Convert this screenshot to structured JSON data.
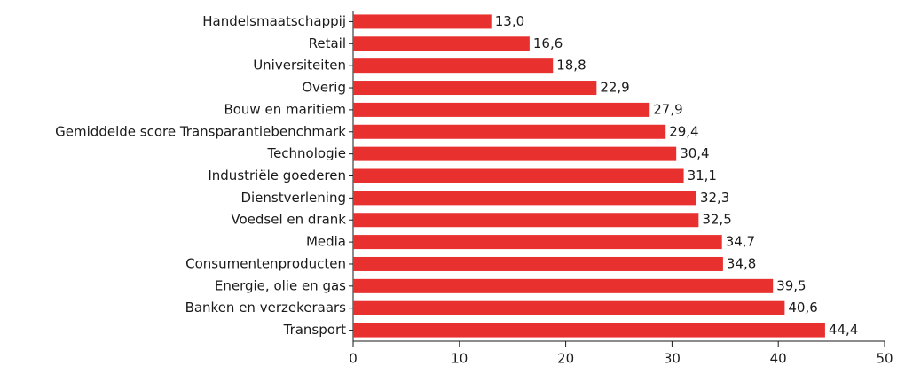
{
  "chart_data": {
    "type": "bar",
    "orientation": "horizontal",
    "categories": [
      "Handelsmaatschappij",
      "Retail",
      "Universiteiten",
      "Overig",
      "Bouw en maritiem",
      "Gemiddelde score Transparantiebenchmark",
      "Technologie",
      "Industriële goederen",
      "Dienstverlening",
      "Voedsel en drank",
      "Media",
      "Consumentenproducten",
      "Energie, olie en gas",
      "Banken en verzekeraars",
      "Transport"
    ],
    "values": [
      13.0,
      16.6,
      18.8,
      22.9,
      27.9,
      29.4,
      30.4,
      31.1,
      32.3,
      32.5,
      34.7,
      34.8,
      39.5,
      40.6,
      44.4
    ],
    "value_labels": [
      "13,0",
      "16,6",
      "18,8",
      "22,9",
      "27,9",
      "29,4",
      "30,4",
      "31,1",
      "32,3",
      "32,5",
      "34,7",
      "34,8",
      "39,5",
      "40,6",
      "44,4"
    ],
    "color": "#e8312f",
    "xlim": [
      0,
      50
    ],
    "xticks": [
      0,
      10,
      20,
      30,
      40,
      50
    ]
  }
}
